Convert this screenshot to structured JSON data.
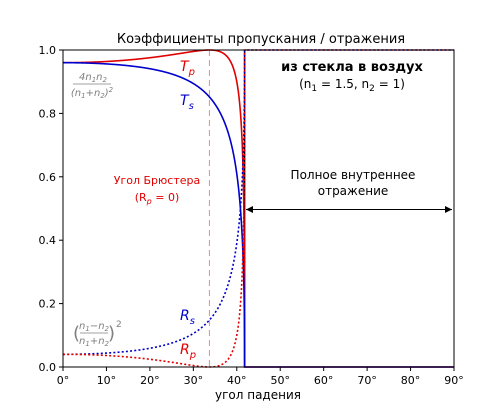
{
  "chart_data": {
    "type": "line",
    "title": "Коэффициенты пропускания / отражения",
    "xlabel": "угол падения",
    "ylabel": "",
    "xlim": [
      0,
      90
    ],
    "ylim": [
      0,
      1
    ],
    "xticks": [
      "0°",
      "10°",
      "20°",
      "30°",
      "40°",
      "50°",
      "60°",
      "70°",
      "80°",
      "90°"
    ],
    "yticks": [
      "0.0",
      "0.2",
      "0.4",
      "0.6",
      "0.8",
      "1.0"
    ],
    "n1": 1.5,
    "n2": 1,
    "brewster_angle": 33.7,
    "critical_angle": 41.8,
    "series": [
      {
        "name": "T_p",
        "color": "#e00000",
        "style": "solid"
      },
      {
        "name": "T_s",
        "color": "#0000cc",
        "style": "solid"
      },
      {
        "name": "R_s",
        "color": "#0000cc",
        "style": "dotted"
      },
      {
        "name": "R_p",
        "color": "#e00000",
        "style": "dotted"
      }
    ],
    "annotations": {
      "tp_label": {
        "base": "T",
        "sub": "p"
      },
      "ts_label": {
        "base": "T",
        "sub": "s"
      },
      "rs_label": {
        "base": "R",
        "sub": "s"
      },
      "rp_label": {
        "base": "R",
        "sub": "p"
      },
      "brewster_line1": "Угол Брюстера",
      "brewster_line2": "(R",
      "brewster_line2_sub": "p",
      "brewster_line2_end": " = 0)",
      "medium_line1": "из стекла в воздух",
      "medium_line2": "(n",
      "medium_line2_sub1": "1",
      "medium_line2_mid": " = 1.5, n",
      "medium_line2_sub2": "2",
      "medium_line2_end": " = 1)",
      "tir_line1": "Полное внутреннее",
      "tir_line2": "отражение",
      "t_formula_num": "4n",
      "t_formula_num_sub1": "1",
      "t_formula_num_mid": "n",
      "t_formula_num_sub2": "2",
      "t_formula_den": "(n",
      "t_formula_den_sub1": "1",
      "t_formula_den_mid": "+n",
      "t_formula_den_sub2": "2",
      "t_formula_den_end": ")",
      "t_formula_den_sup": "2",
      "r_formula_num": "n",
      "r_formula_num_sub1": "1",
      "r_formula_num_mid": "−n",
      "r_formula_num_sub2": "2",
      "r_formula_den": "n",
      "r_formula_den_sub1": "1",
      "r_formula_den_mid": "+n",
      "r_formula_den_sub2": "2",
      "r_formula_sup": "2"
    }
  }
}
